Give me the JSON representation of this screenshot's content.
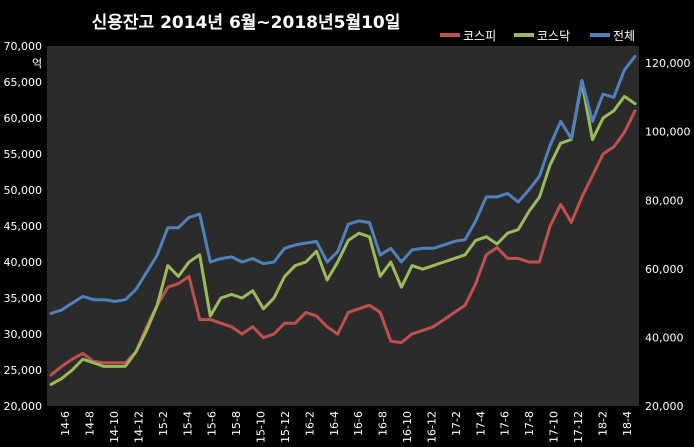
{
  "chart_data": {
    "type": "line",
    "title": "신용잔고 2014년 6월~2018년5월10일",
    "left_axis": {
      "unit_label": "억",
      "ylim": [
        20000,
        70000
      ],
      "ticks": [
        "70,000",
        "65,000",
        "60,000",
        "55,000",
        "50,000",
        "45,000",
        "40,000",
        "35,000",
        "30,000",
        "25,000",
        "20,000"
      ]
    },
    "right_axis": {
      "ylim": [
        20000,
        125000
      ],
      "ticks": [
        "120,000",
        "100,000",
        "80,000",
        "60,000",
        "40,000",
        "20,000"
      ]
    },
    "x_tick_labels": [
      "14-6",
      "14-8",
      "14-10",
      "14-12",
      "15-2",
      "15-4",
      "15-6",
      "15-8",
      "15-10",
      "15-12",
      "16-2",
      "16-4",
      "16-6",
      "16-8",
      "16-10",
      "16-12",
      "17-2",
      "17-4",
      "17-6",
      "17-8",
      "17-10",
      "17-12",
      "18-2",
      "18-4"
    ],
    "grid": false,
    "legend_position": "top-right",
    "series": [
      {
        "name": "코스피",
        "color": "#c0504d",
        "axis": "left",
        "values": [
          24300,
          25500,
          26500,
          27300,
          26200,
          26000,
          26000,
          26000,
          27500,
          31000,
          34000,
          36500,
          37000,
          38000,
          32000,
          32000,
          31500,
          31000,
          30000,
          31000,
          29500,
          30000,
          31500,
          31500,
          33000,
          32500,
          31000,
          30000,
          33000,
          33500,
          34000,
          33000,
          29000,
          28800,
          30000,
          30500,
          31000,
          32000,
          33000,
          34000,
          37000,
          41000,
          42000,
          40500,
          40500,
          40000,
          40000,
          45000,
          48000,
          45500,
          49000,
          52000,
          55000,
          56000,
          58000,
          61000
        ]
      },
      {
        "name": "코스닥",
        "color": "#9bbb59",
        "axis": "left",
        "values": [
          23000,
          23800,
          25000,
          26500,
          26000,
          25500,
          25500,
          25500,
          27500,
          30500,
          34000,
          39500,
          38000,
          40000,
          41000,
          32500,
          35000,
          35500,
          35000,
          36000,
          33500,
          35000,
          38000,
          39500,
          40000,
          41500,
          37500,
          40000,
          43000,
          44000,
          43500,
          38000,
          40000,
          36500,
          39500,
          39000,
          39500,
          40000,
          40500,
          41000,
          43000,
          43500,
          42500,
          44000,
          44500,
          47000,
          49000,
          53500,
          56500,
          57000,
          65000,
          57000,
          60000,
          61000,
          63000,
          62000
        ]
      },
      {
        "name": "전체",
        "color": "#4f81bd",
        "axis": "right",
        "values": [
          47000,
          48000,
          50000,
          52000,
          51000,
          51000,
          50500,
          51000,
          54000,
          59000,
          64000,
          72000,
          72000,
          75000,
          76000,
          62000,
          63000,
          63500,
          62000,
          63000,
          61500,
          62000,
          66000,
          67000,
          67500,
          68000,
          62000,
          65000,
          73000,
          74000,
          73500,
          64000,
          66000,
          62000,
          65500,
          66000,
          66000,
          67000,
          68000,
          68500,
          74000,
          81000,
          81000,
          82000,
          79500,
          83000,
          87000,
          96000,
          103000,
          98000,
          115000,
          103000,
          111000,
          110000,
          118000,
          122000
        ]
      }
    ]
  }
}
